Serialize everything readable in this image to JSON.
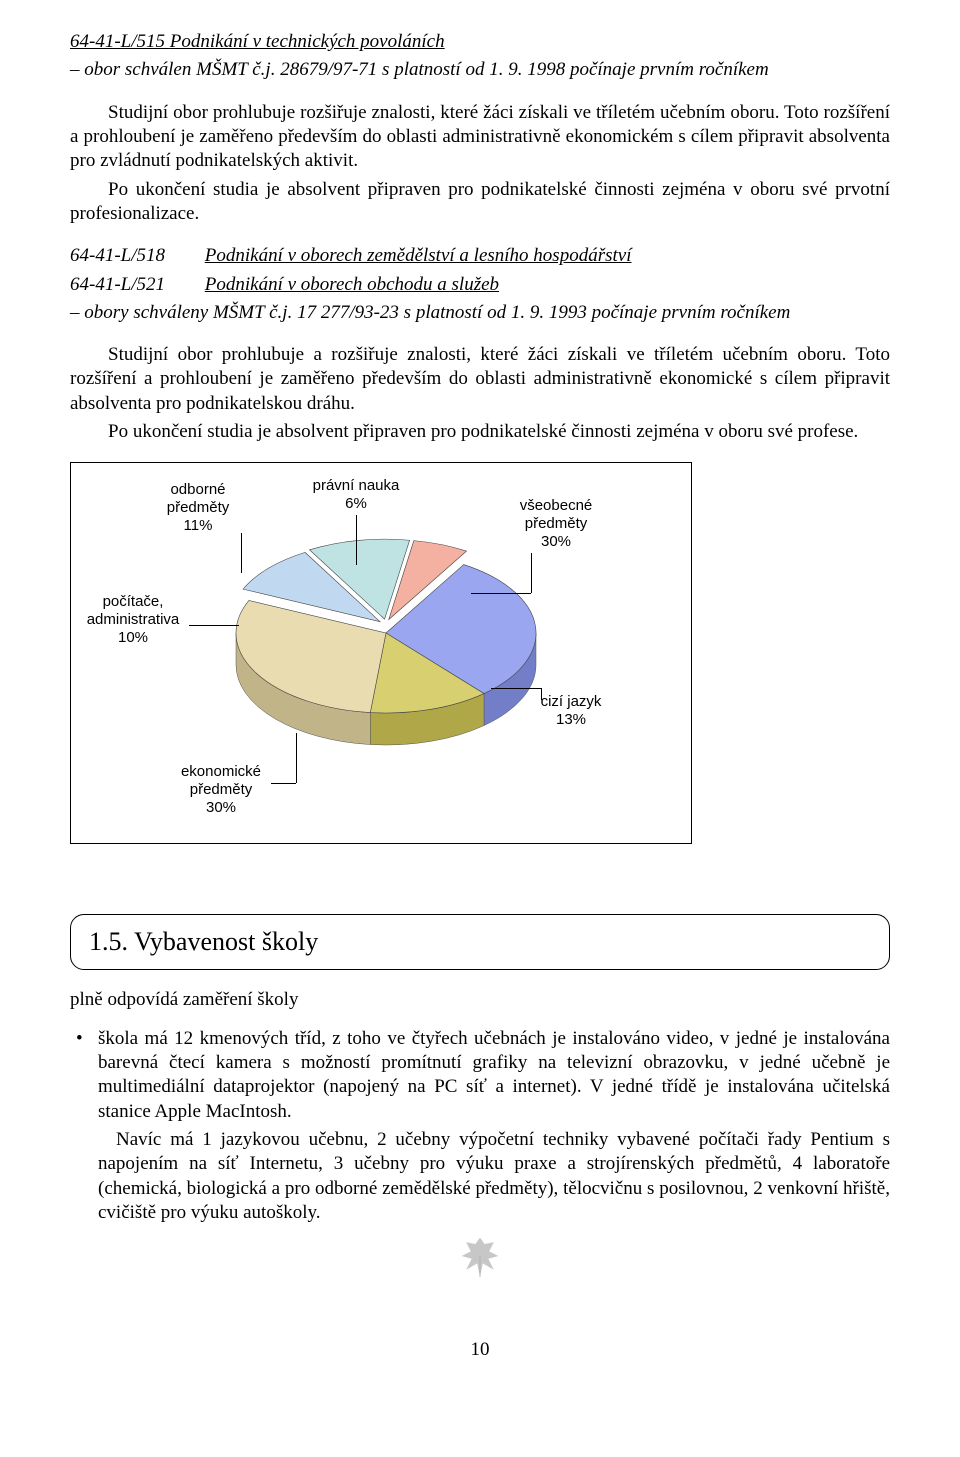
{
  "header": {
    "program_code": "64-41-L/515",
    "program_name": "Podnikání v technických povoláních",
    "approval_line": "– obor schválen MŠMT č.j. 28679/97-71  s platností od 1. 9. 1998 počínaje prvním ročníkem"
  },
  "para1": {
    "p1": "Studijní obor prohlubuje rozšiřuje znalosti, které žáci získali ve tříletém učebním oboru. Toto rozšíření a prohloubení je zaměřeno především do oblasti administrativně ekonomickém s cílem připravit absolventa pro zvládnutí podnikatelských aktivit.",
    "p2": "Po ukončení studia je absolvent připraven pro podnikatelské činnosti zejména v oboru své prvotní profesionalizace."
  },
  "defs": {
    "a_code": "64-41-L/518",
    "a_name": "Podnikání v oborech zemědělství a lesního hospodářství",
    "b_code": "64-41-L/521",
    "b_name": "Podnikání v oborech obchodu a služeb",
    "approval_line": "– obory schváleny MŠMT č.j. 17 277/93-23 s platností od 1. 9. 1993 počínaje prvním ročníkem"
  },
  "para2": {
    "p1": "Studijní obor prohlubuje a rozšiřuje znalosti, které žáci získali ve tříletém učebním oboru. Toto rozšíření a prohloubení je zaměřeno především do oblasti administrativně ekonomické s cílem připravit absolventa pro podnikatelskou dráhu.",
    "p2": "Po ukončení studia je absolvent připraven pro podnikatelské činnosti zejména v oboru své profese."
  },
  "chart": {
    "type": "pie-3d",
    "background_color": "#ffffff",
    "border_color": "#000000",
    "label_font_family": "Arial",
    "label_font_size": 15,
    "slices": [
      {
        "label": "odborné\npředměty",
        "percent_text": "11%",
        "value": 11,
        "color": "#bfe2e2"
      },
      {
        "label": "právní nauka",
        "percent_text": "6%",
        "value": 6,
        "color": "#f4b0a0"
      },
      {
        "label": "všeobecné\npředměty",
        "percent_text": "30%",
        "value": 30,
        "color": "#9aa6f0"
      },
      {
        "label": "cizí jazyk",
        "percent_text": "13%",
        "value": 13,
        "color": "#d8d070"
      },
      {
        "label": "ekonomické\npředměty",
        "percent_text": "30%",
        "value": 30,
        "color": "#e8dcb0"
      },
      {
        "label": "počítače,\nadministrativa",
        "percent_text": "10%",
        "value": 10,
        "color": "#c0d8f0"
      }
    ],
    "side_color": "#707070",
    "sep_colors": [
      "#5060a0",
      "#a08040"
    ],
    "leader_color": "#000000",
    "label_color": "#000000"
  },
  "section": {
    "number": "1.5.",
    "title": "Vybavenost školy"
  },
  "section_lead": "plně odpovídá zaměření školy",
  "bullets": {
    "b1": "škola má 12 kmenových tříd, z toho ve čtyřech učebnách je instalováno video, v jedné je instalována barevná čtecí kamera s možností promítnutí grafiky na televizní obrazovku, v jedné učebně je multimediální dataprojektor (napojený na PC síť a internet). V jedné třídě je instalována učitelská stanice Apple MacIntosh.",
    "b1b": "Navíc má 1 jazykovou učebnu, 2 učebny výpočetní techniky vybavené počítači řady Pentium s napojením na síť Internetu, 3 učebny pro výuku praxe a strojírenských předmětů, 4 laboratoře (chemická, biologická a pro odborné zemědělské předměty), tělocvičnu s posilovnou,  2 venkovní hřiště, cvičiště pro výuku autoškoly."
  },
  "page_number": "10",
  "leaf_color": "#c7c7c7"
}
